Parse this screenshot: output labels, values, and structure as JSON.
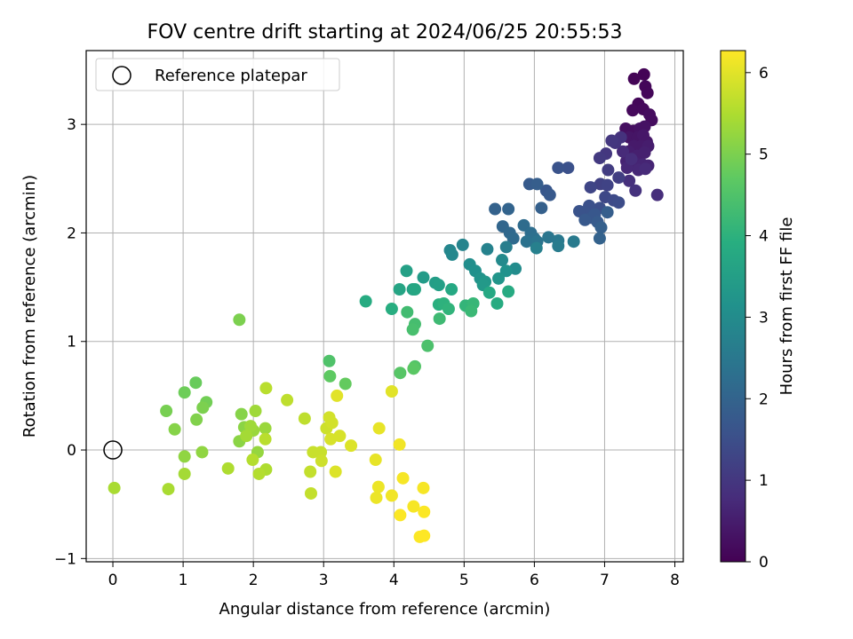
{
  "chart_data": {
    "type": "scatter",
    "title": "FOV centre drift starting at 2024/06/25 20:55:53",
    "xlabel": "Angular distance from reference (arcmin)",
    "ylabel": "Rotation from reference (arcmin)",
    "xlim": [
      -0.38,
      8.12
    ],
    "ylim": [
      -1.03,
      3.68
    ],
    "xticks": [
      "0",
      "1",
      "2",
      "3",
      "4",
      "5",
      "6",
      "7",
      "8"
    ],
    "yticks": [
      "−1",
      "0",
      "1",
      "2",
      "3"
    ],
    "grid": true,
    "legend": {
      "placement": "top-left",
      "entries": [
        "Reference platepar"
      ]
    },
    "reference_point": {
      "x": 0,
      "y": 0
    },
    "colorbar": {
      "label": "Hours from first FF file",
      "range": [
        0,
        6.27
      ],
      "ticks": [
        "0",
        "1",
        "2",
        "3",
        "4",
        "5",
        "6"
      ],
      "colormap": "viridis"
    },
    "points": [
      [
        7.42,
        3.42,
        0.05
      ],
      [
        7.56,
        3.46,
        0.05
      ],
      [
        7.58,
        3.35,
        0.1
      ],
      [
        7.61,
        3.29,
        0.1
      ],
      [
        7.48,
        3.19,
        0.1
      ],
      [
        7.4,
        3.13,
        0.15
      ],
      [
        7.55,
        3.14,
        0.15
      ],
      [
        7.64,
        3.09,
        0.2
      ],
      [
        7.67,
        3.04,
        0.2
      ],
      [
        7.3,
        2.96,
        0.25
      ],
      [
        7.41,
        2.94,
        0.25
      ],
      [
        7.5,
        2.96,
        0.3
      ],
      [
        7.57,
        2.98,
        0.3
      ],
      [
        7.35,
        2.88,
        0.35
      ],
      [
        7.47,
        2.88,
        0.35
      ],
      [
        7.55,
        2.9,
        0.4
      ],
      [
        7.6,
        2.84,
        0.4
      ],
      [
        7.42,
        2.8,
        0.45
      ],
      [
        7.52,
        2.8,
        0.45
      ],
      [
        7.62,
        2.8,
        0.5
      ],
      [
        7.34,
        2.75,
        0.5
      ],
      [
        7.46,
        2.71,
        0.55
      ],
      [
        7.57,
        2.74,
        0.55
      ],
      [
        7.31,
        2.66,
        0.6
      ],
      [
        7.44,
        2.64,
        0.6
      ],
      [
        7.54,
        2.63,
        0.65
      ],
      [
        7.62,
        2.62,
        0.65
      ],
      [
        7.32,
        2.6,
        0.7
      ],
      [
        7.48,
        2.58,
        0.7
      ],
      [
        7.58,
        2.59,
        0.75
      ],
      [
        7.26,
        2.75,
        0.75
      ],
      [
        7.38,
        2.68,
        0.8
      ],
      [
        7.75,
        2.35,
        0.8
      ],
      [
        7.35,
        2.48,
        0.85
      ],
      [
        7.44,
        2.39,
        0.9
      ],
      [
        7.23,
        2.88,
        0.9
      ],
      [
        7.15,
        2.83,
        0.95
      ],
      [
        7.1,
        2.85,
        1.0
      ],
      [
        7.02,
        2.73,
        1.0
      ],
      [
        6.93,
        2.69,
        1.05
      ],
      [
        7.05,
        2.58,
        1.1
      ],
      [
        7.2,
        2.51,
        1.15
      ],
      [
        6.94,
        2.45,
        1.2
      ],
      [
        7.04,
        2.44,
        1.25
      ],
      [
        6.8,
        2.42,
        1.3
      ],
      [
        7.01,
        2.33,
        1.35
      ],
      [
        7.13,
        2.3,
        1.4
      ],
      [
        7.2,
        2.28,
        1.45
      ],
      [
        6.93,
        2.23,
        1.5
      ],
      [
        6.78,
        2.25,
        1.55
      ],
      [
        6.72,
        2.19,
        1.6
      ],
      [
        6.64,
        2.2,
        1.6
      ],
      [
        6.81,
        2.14,
        1.65
      ],
      [
        6.86,
        2.17,
        1.7
      ],
      [
        6.72,
        2.12,
        1.75
      ],
      [
        6.9,
        2.1,
        1.8
      ],
      [
        7.04,
        2.19,
        1.85
      ],
      [
        6.95,
        2.05,
        1.9
      ],
      [
        6.93,
        1.95,
        1.95
      ],
      [
        6.48,
        2.6,
        1.55
      ],
      [
        6.34,
        2.6,
        1.6
      ],
      [
        6.17,
        2.39,
        1.7
      ],
      [
        6.22,
        2.35,
        1.75
      ],
      [
        5.93,
        2.45,
        1.8
      ],
      [
        6.04,
        2.45,
        1.85
      ],
      [
        6.1,
        2.23,
        1.9
      ],
      [
        5.44,
        2.22,
        1.95
      ],
      [
        5.63,
        2.22,
        2.0
      ],
      [
        5.55,
        2.06,
        2.05
      ],
      [
        5.65,
        2.0,
        2.1
      ],
      [
        5.7,
        1.95,
        2.15
      ],
      [
        5.85,
        2.07,
        2.2
      ],
      [
        5.95,
        2.0,
        2.25
      ],
      [
        6.0,
        1.95,
        2.3
      ],
      [
        5.89,
        1.92,
        2.35
      ],
      [
        6.04,
        1.92,
        2.4
      ],
      [
        6.2,
        1.96,
        2.45
      ],
      [
        6.34,
        1.93,
        2.5
      ],
      [
        6.56,
        1.92,
        2.55
      ],
      [
        6.34,
        1.88,
        2.6
      ],
      [
        5.6,
        1.87,
        2.65
      ],
      [
        6.03,
        1.86,
        2.7
      ],
      [
        5.33,
        1.85,
        2.75
      ],
      [
        4.98,
        1.89,
        2.8
      ],
      [
        4.8,
        1.84,
        2.85
      ],
      [
        4.83,
        1.8,
        2.9
      ],
      [
        5.54,
        1.75,
        2.95
      ],
      [
        5.73,
        1.67,
        3.0
      ],
      [
        5.08,
        1.71,
        3.05
      ],
      [
        5.16,
        1.65,
        3.1
      ],
      [
        5.6,
        1.65,
        3.15
      ],
      [
        5.23,
        1.58,
        3.2
      ],
      [
        5.49,
        1.58,
        3.25
      ],
      [
        5.3,
        1.55,
        3.3
      ],
      [
        5.27,
        1.52,
        3.35
      ],
      [
        4.42,
        1.59,
        3.4
      ],
      [
        4.59,
        1.54,
        3.45
      ],
      [
        4.64,
        1.52,
        3.5
      ],
      [
        4.18,
        1.65,
        3.55
      ],
      [
        4.27,
        1.48,
        3.6
      ],
      [
        4.08,
        1.48,
        3.65
      ],
      [
        4.3,
        1.48,
        3.7
      ],
      [
        4.82,
        1.48,
        3.75
      ],
      [
        5.36,
        1.45,
        3.75
      ],
      [
        5.63,
        1.46,
        3.8
      ],
      [
        5.47,
        1.35,
        3.85
      ],
      [
        3.6,
        1.37,
        3.85
      ],
      [
        3.97,
        1.3,
        3.9
      ],
      [
        4.64,
        1.34,
        3.95
      ],
      [
        4.71,
        1.35,
        4.0
      ],
      [
        4.78,
        1.3,
        4.05
      ],
      [
        5.02,
        1.33,
        4.1
      ],
      [
        5.13,
        1.35,
        4.15
      ],
      [
        5.1,
        1.28,
        4.2
      ],
      [
        4.65,
        1.21,
        4.25
      ],
      [
        4.19,
        1.27,
        4.3
      ],
      [
        4.3,
        1.16,
        4.35
      ],
      [
        4.27,
        1.11,
        4.4
      ],
      [
        4.48,
        0.96,
        4.45
      ],
      [
        3.08,
        0.82,
        4.5
      ],
      [
        4.3,
        0.77,
        4.55
      ],
      [
        4.09,
        0.71,
        4.6
      ],
      [
        4.28,
        0.75,
        4.65
      ],
      [
        3.09,
        0.68,
        4.7
      ],
      [
        3.31,
        0.61,
        4.75
      ],
      [
        1.18,
        0.62,
        4.8
      ],
      [
        1.02,
        0.53,
        4.85
      ],
      [
        1.33,
        0.44,
        4.9
      ],
      [
        0.76,
        0.36,
        4.95
      ],
      [
        1.8,
        1.2,
        5.0
      ],
      [
        1.28,
        0.39,
        5.0
      ],
      [
        1.19,
        0.28,
        5.05
      ],
      [
        0.88,
        0.19,
        5.1
      ],
      [
        1.83,
        0.33,
        5.1
      ],
      [
        1.87,
        0.21,
        5.15
      ],
      [
        1.8,
        0.08,
        5.15
      ],
      [
        1.02,
        -0.06,
        5.2
      ],
      [
        1.27,
        -0.02,
        5.2
      ],
      [
        2.06,
        -0.02,
        5.25
      ],
      [
        2.17,
        0.2,
        5.3
      ],
      [
        2.0,
        0.18,
        5.3
      ],
      [
        1.96,
        0.22,
        5.35
      ],
      [
        2.03,
        0.36,
        5.35
      ],
      [
        1.9,
        0.13,
        5.4
      ],
      [
        1.02,
        -0.22,
        5.4
      ],
      [
        0.02,
        -0.35,
        5.45
      ],
      [
        0.79,
        -0.36,
        5.45
      ],
      [
        1.64,
        -0.17,
        5.5
      ],
      [
        2.18,
        -0.18,
        5.5
      ],
      [
        2.08,
        -0.22,
        5.55
      ],
      [
        1.99,
        -0.09,
        5.55
      ],
      [
        2.17,
        0.1,
        5.6
      ],
      [
        2.18,
        0.57,
        5.6
      ],
      [
        2.48,
        0.46,
        5.65
      ],
      [
        2.73,
        0.29,
        5.65
      ],
      [
        2.81,
        -0.2,
        5.7
      ],
      [
        2.82,
        -0.4,
        5.7
      ],
      [
        2.85,
        -0.02,
        5.75
      ],
      [
        2.96,
        -0.02,
        5.75
      ],
      [
        2.97,
        -0.1,
        5.8
      ],
      [
        3.04,
        0.2,
        5.8
      ],
      [
        3.08,
        0.3,
        5.85
      ],
      [
        3.12,
        0.25,
        5.85
      ],
      [
        3.1,
        0.1,
        5.9
      ],
      [
        3.23,
        0.13,
        5.9
      ],
      [
        3.39,
        0.04,
        5.95
      ],
      [
        3.17,
        -0.2,
        5.95
      ],
      [
        3.19,
        0.5,
        6.0
      ],
      [
        3.97,
        0.54,
        6.0
      ],
      [
        3.79,
        0.2,
        6.05
      ],
      [
        3.74,
        -0.09,
        6.05
      ],
      [
        3.75,
        -0.44,
        6.1
      ],
      [
        3.78,
        -0.34,
        6.1
      ],
      [
        3.97,
        -0.42,
        6.15
      ],
      [
        4.08,
        0.05,
        6.15
      ],
      [
        4.13,
        -0.26,
        6.2
      ],
      [
        4.28,
        -0.52,
        6.2
      ],
      [
        4.42,
        -0.35,
        6.2
      ],
      [
        4.43,
        -0.57,
        6.25
      ],
      [
        4.09,
        -0.6,
        6.25
      ],
      [
        4.37,
        -0.8,
        6.25
      ],
      [
        4.43,
        -0.79,
        6.27
      ]
    ]
  }
}
